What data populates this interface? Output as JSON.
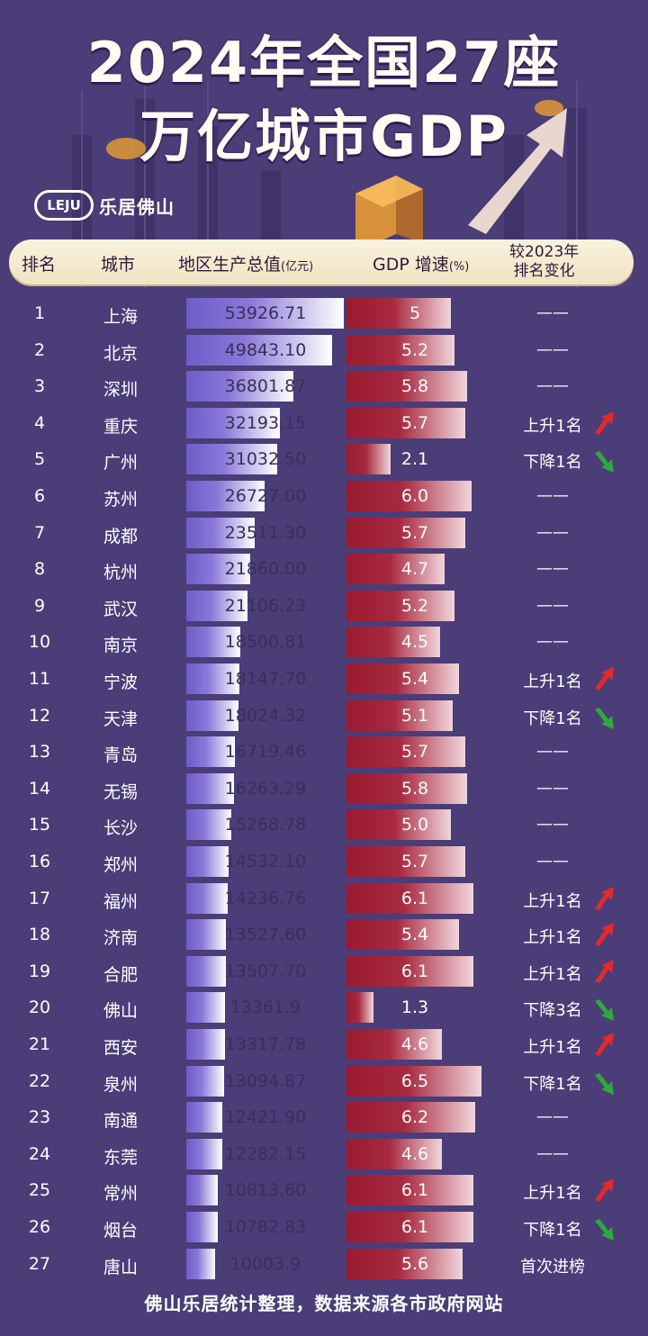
{
  "title_line1": "2024年全国27座",
  "title_line2": "万亿城市GDP",
  "logo": {
    "badge": "LEJU",
    "text": "乐居佛山"
  },
  "header": {
    "rank": "排名",
    "city": "城市",
    "gdp": "地区生产总值",
    "gdp_unit": "(亿元)",
    "growth": "GDP 增速",
    "growth_unit": "(%)",
    "change_line1": "较2023年",
    "change_line2": "排名变化"
  },
  "footer": "佛山乐居统计整理，数据来源各市政府网站",
  "colors": {
    "background": "#4a3d78",
    "gdp_bar": "#8a78d8",
    "growth_bar": "#a82a40",
    "up": "#e22a2a",
    "down": "#2eaa3a"
  },
  "chart_data": {
    "type": "table",
    "columns": [
      "排名",
      "城市",
      "地区生产总值(亿元)",
      "GDP 增速(%)",
      "较2023年排名变化"
    ],
    "rows": [
      {
        "rank": "1",
        "city": "上海",
        "gdp": "53926.71",
        "growth": "5",
        "change": "——",
        "dir": "none"
      },
      {
        "rank": "2",
        "city": "北京",
        "gdp": "49843.10",
        "growth": "5.2",
        "change": "——",
        "dir": "none"
      },
      {
        "rank": "3",
        "city": "深圳",
        "gdp": "36801.87",
        "growth": "5.8",
        "change": "——",
        "dir": "none"
      },
      {
        "rank": "4",
        "city": "重庆",
        "gdp": "32193.15",
        "growth": "5.7",
        "change": "上升1名",
        "dir": "up"
      },
      {
        "rank": "5",
        "city": "广州",
        "gdp": "31032.50",
        "growth": "2.1",
        "change": "下降1名",
        "dir": "down"
      },
      {
        "rank": "6",
        "city": "苏州",
        "gdp": "26727.00",
        "growth": "6.0",
        "change": "——",
        "dir": "none"
      },
      {
        "rank": "7",
        "city": "成都",
        "gdp": "23511.30",
        "growth": "5.7",
        "change": "——",
        "dir": "none"
      },
      {
        "rank": "8",
        "city": "杭州",
        "gdp": "21860.00",
        "growth": "4.7",
        "change": "——",
        "dir": "none"
      },
      {
        "rank": "9",
        "city": "武汉",
        "gdp": "21106.23",
        "growth": "5.2",
        "change": "——",
        "dir": "none"
      },
      {
        "rank": "10",
        "city": "南京",
        "gdp": "18500.81",
        "growth": "4.5",
        "change": "——",
        "dir": "none"
      },
      {
        "rank": "11",
        "city": "宁波",
        "gdp": "18147.70",
        "growth": "5.4",
        "change": "上升1名",
        "dir": "up"
      },
      {
        "rank": "12",
        "city": "天津",
        "gdp": "18024.32",
        "growth": "5.1",
        "change": "下降1名",
        "dir": "down"
      },
      {
        "rank": "13",
        "city": "青岛",
        "gdp": "16719.46",
        "growth": "5.7",
        "change": "——",
        "dir": "none"
      },
      {
        "rank": "14",
        "city": "无锡",
        "gdp": "16263.29",
        "growth": "5.8",
        "change": "——",
        "dir": "none"
      },
      {
        "rank": "15",
        "city": "长沙",
        "gdp": "15268.78",
        "growth": "5.0",
        "change": "——",
        "dir": "none"
      },
      {
        "rank": "16",
        "city": "郑州",
        "gdp": "14532.10",
        "growth": "5.7",
        "change": "——",
        "dir": "none"
      },
      {
        "rank": "17",
        "city": "福州",
        "gdp": "14236.76",
        "growth": "6.1",
        "change": "上升1名",
        "dir": "up"
      },
      {
        "rank": "18",
        "city": "济南",
        "gdp": "13527.60",
        "growth": "5.4",
        "change": "上升1名",
        "dir": "up"
      },
      {
        "rank": "19",
        "city": "合肥",
        "gdp": "13507.70",
        "growth": "6.1",
        "change": "上升1名",
        "dir": "up"
      },
      {
        "rank": "20",
        "city": "佛山",
        "gdp": "13361.9",
        "growth": "1.3",
        "change": "下降3名",
        "dir": "down"
      },
      {
        "rank": "21",
        "city": "西安",
        "gdp": "13317.78",
        "growth": "4.6",
        "change": "上升1名",
        "dir": "up"
      },
      {
        "rank": "22",
        "city": "泉州",
        "gdp": "13094.87",
        "growth": "6.5",
        "change": "下降1名",
        "dir": "down"
      },
      {
        "rank": "23",
        "city": "南通",
        "gdp": "12421.90",
        "growth": "6.2",
        "change": "——",
        "dir": "none"
      },
      {
        "rank": "24",
        "city": "东莞",
        "gdp": "12282.15",
        "growth": "4.6",
        "change": "——",
        "dir": "none"
      },
      {
        "rank": "25",
        "city": "常州",
        "gdp": "10813.60",
        "growth": "6.1",
        "change": "上升1名",
        "dir": "up"
      },
      {
        "rank": "26",
        "city": "烟台",
        "gdp": "10782.83",
        "growth": "6.1",
        "change": "下降1名",
        "dir": "down"
      },
      {
        "rank": "27",
        "city": "唐山",
        "gdp": "10003.9",
        "growth": "5.6",
        "change": "首次进榜",
        "dir": "none"
      }
    ]
  }
}
